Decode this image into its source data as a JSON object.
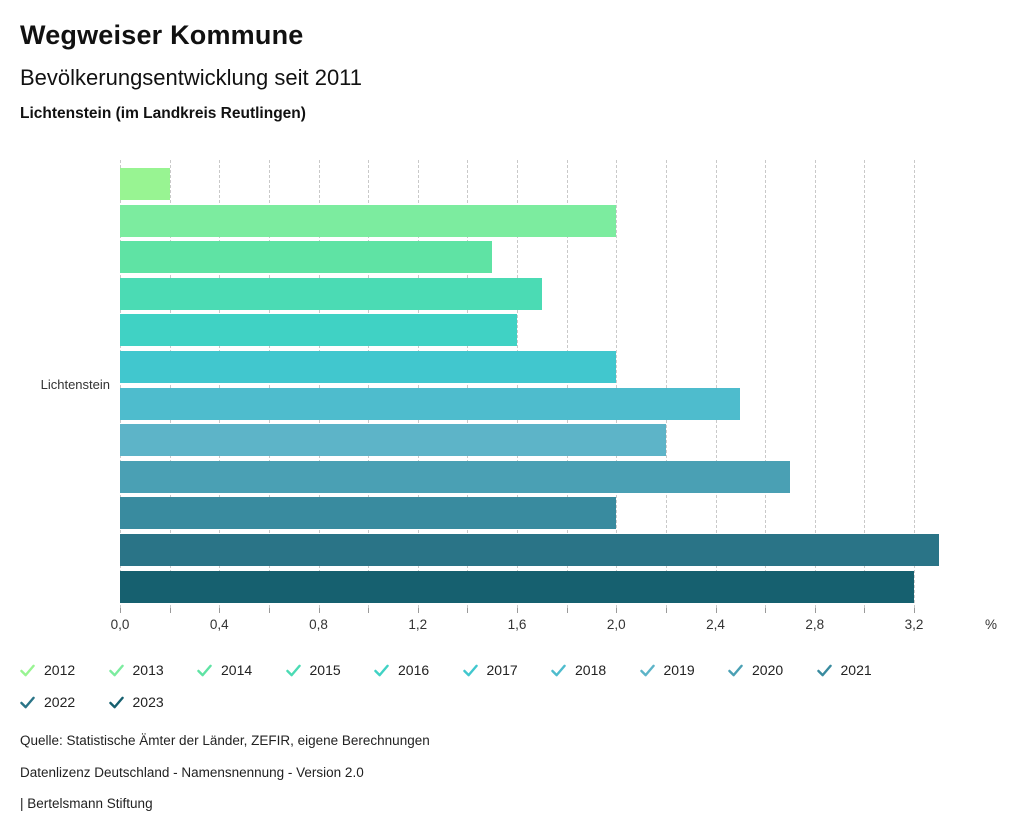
{
  "header": {
    "title": "Wegweiser Kommune",
    "subtitle": "Bevölkerungsentwicklung seit 2011",
    "region": "Lichtenstein (im Landkreis Reutlingen)"
  },
  "chart_data": {
    "type": "bar",
    "orientation": "horizontal",
    "group_label": "Lichtenstein",
    "unit_label": "%",
    "categories": [
      "2012",
      "2013",
      "2014",
      "2015",
      "2016",
      "2017",
      "2018",
      "2019",
      "2020",
      "2021",
      "2022",
      "2023"
    ],
    "values": [
      0.2,
      2.0,
      1.5,
      1.7,
      1.6,
      2.0,
      2.5,
      2.2,
      2.7,
      2.0,
      3.3,
      3.2
    ],
    "colors": [
      "#98f492",
      "#7cec9f",
      "#5fe3a4",
      "#4bdbb4",
      "#40d2c4",
      "#41c7ce",
      "#4ebccd",
      "#5db4c8",
      "#4aa0b4",
      "#398b9f",
      "#2a7487",
      "#16606f"
    ],
    "xlim": [
      0,
      3.2
    ],
    "grid_interval": 0.2,
    "grid": true,
    "x_major_tick_labels": [
      "0,0",
      "0,4",
      "0,8",
      "1,2",
      "1,6",
      "2,0",
      "2,4",
      "2,8",
      "3,2"
    ],
    "x_major_tick_values": [
      0,
      0.4,
      0.8,
      1.2,
      1.6,
      2.0,
      2.4,
      2.8,
      3.2
    ],
    "legend_position": "bottom"
  },
  "footer": {
    "source": "Quelle: Statistische Ämter der Länder, ZEFIR, eigene Berechnungen",
    "license": "Datenlizenz Deutschland - Namensnennung - Version 2.0",
    "attribution": "| Bertelsmann Stiftung"
  }
}
